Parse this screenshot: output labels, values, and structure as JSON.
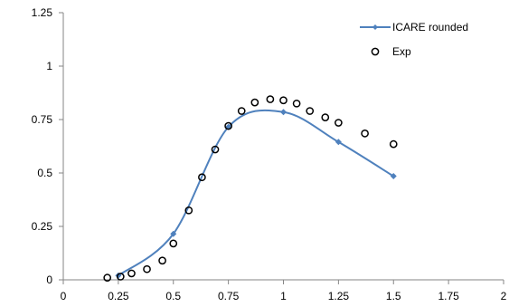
{
  "chart_data": {
    "type": "scatter",
    "x_ticks": [
      "0",
      "0.25",
      "0.5",
      "0.75",
      "1",
      "1.25",
      "1.5",
      "1.75",
      "2"
    ],
    "y_ticks": [
      "0",
      "0.25",
      "0.5",
      "0.75",
      "1",
      "1.25"
    ],
    "xlim": [
      0,
      2
    ],
    "ylim": [
      0,
      1.25
    ],
    "grid": false,
    "legend_position": "top-right",
    "series": [
      {
        "name": "ICARE rounded",
        "kind": "line-with-diamond-markers",
        "color": "#4f81bd",
        "x": [
          0.25,
          0.5,
          0.75,
          1.0,
          1.25,
          1.5
        ],
        "y": [
          0.02,
          0.215,
          0.715,
          0.785,
          0.645,
          0.485
        ]
      },
      {
        "name": "Exp",
        "kind": "hollow-circle-markers",
        "color": "#000000",
        "x": [
          0.2,
          0.26,
          0.31,
          0.38,
          0.45,
          0.5,
          0.57,
          0.63,
          0.69,
          0.75,
          0.81,
          0.87,
          0.94,
          1.0,
          1.06,
          1.12,
          1.19,
          1.25,
          1.37,
          1.5
        ],
        "y": [
          0.01,
          0.015,
          0.03,
          0.05,
          0.09,
          0.17,
          0.325,
          0.48,
          0.61,
          0.72,
          0.79,
          0.83,
          0.845,
          0.84,
          0.825,
          0.79,
          0.76,
          0.735,
          0.685,
          0.635
        ]
      }
    ]
  }
}
